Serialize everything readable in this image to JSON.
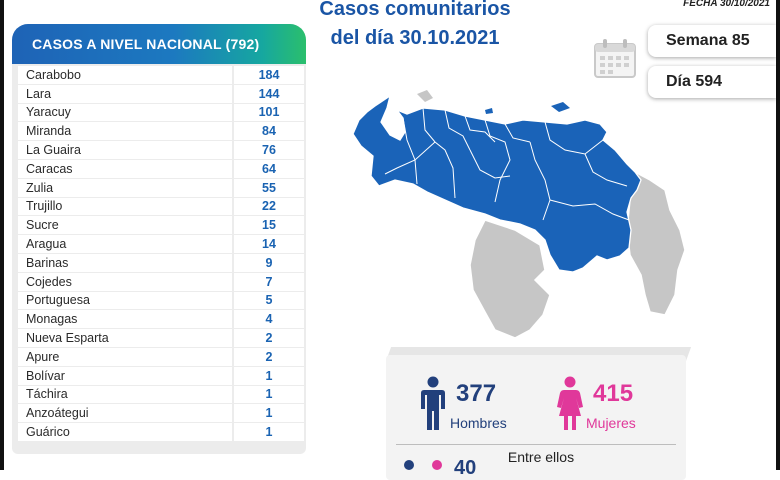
{
  "title": {
    "line1": "Casos comunitarios",
    "line2": "del día 30.10.2021"
  },
  "date_label": "FECHA 30/10/2021",
  "week_label": "Semana 85",
  "day_label": "Día 594",
  "national": {
    "header": "CASOS A NIVEL NACIONAL (792)",
    "rows": [
      {
        "state": "Carabobo",
        "cases": "184"
      },
      {
        "state": "Lara",
        "cases": "144"
      },
      {
        "state": "Yaracuy",
        "cases": "101"
      },
      {
        "state": "Miranda",
        "cases": "84"
      },
      {
        "state": "La Guaira",
        "cases": "76"
      },
      {
        "state": "Caracas",
        "cases": "64"
      },
      {
        "state": "Zulia",
        "cases": "55"
      },
      {
        "state": "Trujillo",
        "cases": "22"
      },
      {
        "state": "Sucre",
        "cases": "15"
      },
      {
        "state": "Aragua",
        "cases": "14"
      },
      {
        "state": "Barinas",
        "cases": "9"
      },
      {
        "state": "Cojedes",
        "cases": "7"
      },
      {
        "state": "Portuguesa",
        "cases": "5"
      },
      {
        "state": "Monagas",
        "cases": "4"
      },
      {
        "state": "Nueva Esparta",
        "cases": "2"
      },
      {
        "state": "Apure",
        "cases": "2"
      },
      {
        "state": "Bolívar",
        "cases": "1"
      },
      {
        "state": "Táchira",
        "cases": "1"
      },
      {
        "state": "Anzoátegui",
        "cases": "1"
      },
      {
        "state": "Guárico",
        "cases": "1"
      }
    ]
  },
  "gender": {
    "men_count": "377",
    "men_label": "Hombres",
    "women_count": "415",
    "women_label": "Mujeres",
    "among_label": "Entre ellos",
    "partial_number": "40"
  },
  "colors": {
    "brand_blue": "#1a63b2",
    "map_blue": "#1a63b8",
    "map_gray": "#c4c4c4",
    "men": "#22407c",
    "women": "#e0389a"
  },
  "icons": {
    "calendar": "calendar-icon",
    "man": "man-icon",
    "woman": "woman-icon"
  }
}
